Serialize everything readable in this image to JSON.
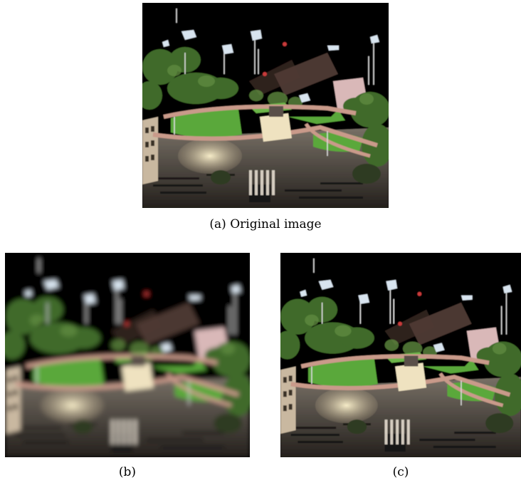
{
  "figure": {
    "panels": [
      {
        "id": "a",
        "caption": "(a) Original image",
        "icon": "point-cloud-scene-image",
        "style": "sharp"
      },
      {
        "id": "b",
        "caption": "(b)",
        "icon": "point-cloud-scene-image",
        "style": "blurred"
      },
      {
        "id": "c",
        "caption": "(c)",
        "icon": "point-cloud-scene-image",
        "style": "sharp"
      }
    ]
  },
  "colors": {
    "background": "#000000",
    "lawn": "#5aa83a",
    "path": "#c99a8a",
    "foliage": "#3f6b2a",
    "plaza": "#d8c8a8",
    "building": "#d9b8b8"
  }
}
